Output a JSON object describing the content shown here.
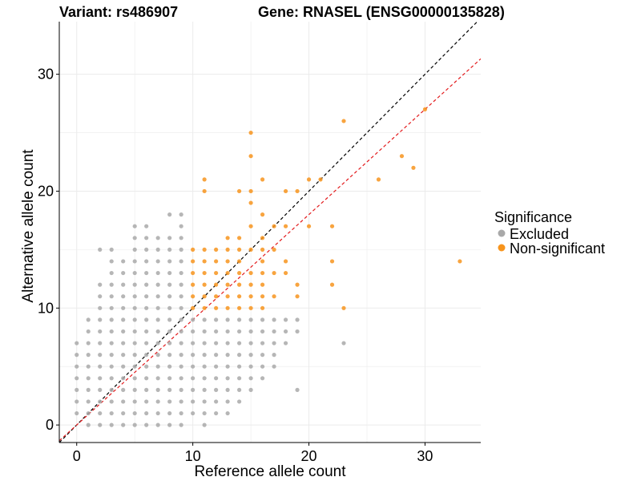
{
  "chart_data": {
    "type": "scatter",
    "title_left": "Variant: rs486907",
    "title_right": "Gene: RNASEL (ENSG00000135828)",
    "xlabel": "Reference allele count",
    "ylabel": "Alternative allele count",
    "xlim": [
      -1.5,
      34.8
    ],
    "ylim": [
      -1.5,
      34.5
    ],
    "x_ticks": [
      0,
      10,
      20,
      30
    ],
    "y_ticks": [
      0,
      10,
      20,
      30
    ],
    "grid": true,
    "legend": {
      "title": "Significance",
      "position": "right",
      "entries": [
        {
          "label": "Excluded",
          "color": "#a9a9a9"
        },
        {
          "label": "Non-significant",
          "color": "#f7941d"
        }
      ]
    },
    "reference_lines": [
      {
        "name": "identity",
        "slope": 1.0,
        "intercept": 0,
        "color": "#000000",
        "style": "dashed"
      },
      {
        "name": "fit",
        "slope": 0.9,
        "intercept": 0,
        "color": "#e31a1c",
        "style": "dashed"
      }
    ],
    "series": [
      {
        "name": "Excluded",
        "color": "#a9a9a9",
        "points": [
          [
            1,
            0
          ],
          [
            2,
            0
          ],
          [
            3,
            0
          ],
          [
            4,
            0
          ],
          [
            5,
            0
          ],
          [
            6,
            0
          ],
          [
            7,
            0
          ],
          [
            8,
            0
          ],
          [
            9,
            0
          ],
          [
            11,
            0
          ],
          [
            0,
            1
          ],
          [
            1,
            1
          ],
          [
            2,
            1
          ],
          [
            3,
            1
          ],
          [
            4,
            1
          ],
          [
            5,
            1
          ],
          [
            6,
            1
          ],
          [
            7,
            1
          ],
          [
            8,
            1
          ],
          [
            9,
            1
          ],
          [
            10,
            1
          ],
          [
            11,
            1
          ],
          [
            12,
            1
          ],
          [
            13,
            1
          ],
          [
            0,
            2
          ],
          [
            1,
            2
          ],
          [
            2,
            2
          ],
          [
            3,
            2
          ],
          [
            4,
            2
          ],
          [
            5,
            2
          ],
          [
            6,
            2
          ],
          [
            7,
            2
          ],
          [
            8,
            2
          ],
          [
            9,
            2
          ],
          [
            10,
            2
          ],
          [
            11,
            2
          ],
          [
            12,
            2
          ],
          [
            13,
            2
          ],
          [
            14,
            2
          ],
          [
            0,
            3
          ],
          [
            1,
            3
          ],
          [
            2,
            3
          ],
          [
            3,
            3
          ],
          [
            4,
            3
          ],
          [
            5,
            3
          ],
          [
            6,
            3
          ],
          [
            7,
            3
          ],
          [
            8,
            3
          ],
          [
            9,
            3
          ],
          [
            10,
            3
          ],
          [
            11,
            3
          ],
          [
            12,
            3
          ],
          [
            13,
            3
          ],
          [
            14,
            3
          ],
          [
            15,
            3
          ],
          [
            19,
            3
          ],
          [
            0,
            4
          ],
          [
            1,
            4
          ],
          [
            2,
            4
          ],
          [
            3,
            4
          ],
          [
            4,
            4
          ],
          [
            5,
            4
          ],
          [
            6,
            4
          ],
          [
            7,
            4
          ],
          [
            8,
            4
          ],
          [
            9,
            4
          ],
          [
            10,
            4
          ],
          [
            11,
            4
          ],
          [
            12,
            4
          ],
          [
            13,
            4
          ],
          [
            14,
            4
          ],
          [
            15,
            4
          ],
          [
            16,
            4
          ],
          [
            0,
            5
          ],
          [
            1,
            5
          ],
          [
            2,
            5
          ],
          [
            3,
            5
          ],
          [
            4,
            5
          ],
          [
            5,
            5
          ],
          [
            6,
            5
          ],
          [
            7,
            5
          ],
          [
            8,
            5
          ],
          [
            9,
            5
          ],
          [
            10,
            5
          ],
          [
            11,
            5
          ],
          [
            12,
            5
          ],
          [
            13,
            5
          ],
          [
            14,
            5
          ],
          [
            15,
            5
          ],
          [
            16,
            5
          ],
          [
            17,
            5
          ],
          [
            0,
            6
          ],
          [
            1,
            6
          ],
          [
            2,
            6
          ],
          [
            3,
            6
          ],
          [
            4,
            6
          ],
          [
            5,
            6
          ],
          [
            6,
            6
          ],
          [
            7,
            6
          ],
          [
            8,
            6
          ],
          [
            9,
            6
          ],
          [
            10,
            6
          ],
          [
            11,
            6
          ],
          [
            12,
            6
          ],
          [
            13,
            6
          ],
          [
            14,
            6
          ],
          [
            15,
            6
          ],
          [
            16,
            6
          ],
          [
            17,
            6
          ],
          [
            0,
            7
          ],
          [
            1,
            7
          ],
          [
            2,
            7
          ],
          [
            3,
            7
          ],
          [
            4,
            7
          ],
          [
            5,
            7
          ],
          [
            6,
            7
          ],
          [
            7,
            7
          ],
          [
            8,
            7
          ],
          [
            9,
            7
          ],
          [
            10,
            7
          ],
          [
            11,
            7
          ],
          [
            12,
            7
          ],
          [
            13,
            7
          ],
          [
            14,
            7
          ],
          [
            15,
            7
          ],
          [
            16,
            7
          ],
          [
            17,
            7
          ],
          [
            18,
            7
          ],
          [
            23,
            7
          ],
          [
            1,
            8
          ],
          [
            2,
            8
          ],
          [
            3,
            8
          ],
          [
            4,
            8
          ],
          [
            5,
            8
          ],
          [
            6,
            8
          ],
          [
            7,
            8
          ],
          [
            8,
            8
          ],
          [
            9,
            8
          ],
          [
            10,
            8
          ],
          [
            11,
            8
          ],
          [
            12,
            8
          ],
          [
            13,
            8
          ],
          [
            14,
            8
          ],
          [
            15,
            8
          ],
          [
            16,
            8
          ],
          [
            17,
            8
          ],
          [
            18,
            8
          ],
          [
            19,
            8
          ],
          [
            1,
            9
          ],
          [
            2,
            9
          ],
          [
            3,
            9
          ],
          [
            4,
            9
          ],
          [
            5,
            9
          ],
          [
            6,
            9
          ],
          [
            7,
            9
          ],
          [
            8,
            9
          ],
          [
            9,
            9
          ],
          [
            10,
            9
          ],
          [
            11,
            9
          ],
          [
            12,
            9
          ],
          [
            13,
            9
          ],
          [
            14,
            9
          ],
          [
            15,
            9
          ],
          [
            16,
            9
          ],
          [
            17,
            9
          ],
          [
            18,
            9
          ],
          [
            19,
            9
          ],
          [
            2,
            10
          ],
          [
            3,
            10
          ],
          [
            4,
            10
          ],
          [
            5,
            10
          ],
          [
            6,
            10
          ],
          [
            7,
            10
          ],
          [
            8,
            10
          ],
          [
            9,
            10
          ],
          [
            2,
            11
          ],
          [
            3,
            11
          ],
          [
            4,
            11
          ],
          [
            5,
            11
          ],
          [
            6,
            11
          ],
          [
            7,
            11
          ],
          [
            8,
            11
          ],
          [
            9,
            11
          ],
          [
            2,
            12
          ],
          [
            3,
            12
          ],
          [
            4,
            12
          ],
          [
            5,
            12
          ],
          [
            6,
            12
          ],
          [
            7,
            12
          ],
          [
            8,
            12
          ],
          [
            9,
            12
          ],
          [
            3,
            13
          ],
          [
            4,
            13
          ],
          [
            5,
            13
          ],
          [
            6,
            13
          ],
          [
            7,
            13
          ],
          [
            8,
            13
          ],
          [
            9,
            13
          ],
          [
            3,
            14
          ],
          [
            4,
            14
          ],
          [
            5,
            14
          ],
          [
            6,
            14
          ],
          [
            7,
            14
          ],
          [
            8,
            14
          ],
          [
            9,
            14
          ],
          [
            2,
            15
          ],
          [
            3,
            15
          ],
          [
            5,
            15
          ],
          [
            6,
            15
          ],
          [
            7,
            15
          ],
          [
            8,
            15
          ],
          [
            9,
            15
          ],
          [
            5,
            16
          ],
          [
            6,
            16
          ],
          [
            7,
            16
          ],
          [
            8,
            16
          ],
          [
            9,
            16
          ],
          [
            5,
            17
          ],
          [
            6,
            17
          ],
          [
            9,
            17
          ],
          [
            8,
            18
          ],
          [
            9,
            18
          ]
        ]
      },
      {
        "name": "Non-significant",
        "color": "#f7941d",
        "points": [
          [
            10,
            10
          ],
          [
            11,
            10
          ],
          [
            12,
            10
          ],
          [
            13,
            10
          ],
          [
            14,
            10
          ],
          [
            15,
            10
          ],
          [
            16,
            10
          ],
          [
            23,
            10
          ],
          [
            10,
            11
          ],
          [
            11,
            11
          ],
          [
            12,
            11
          ],
          [
            13,
            11
          ],
          [
            14,
            11
          ],
          [
            15,
            11
          ],
          [
            16,
            11
          ],
          [
            17,
            11
          ],
          [
            19,
            11
          ],
          [
            10,
            12
          ],
          [
            11,
            12
          ],
          [
            12,
            12
          ],
          [
            13,
            12
          ],
          [
            14,
            12
          ],
          [
            15,
            12
          ],
          [
            16,
            12
          ],
          [
            19,
            12
          ],
          [
            22,
            12
          ],
          [
            10,
            13
          ],
          [
            11,
            13
          ],
          [
            12,
            13
          ],
          [
            13,
            13
          ],
          [
            14,
            13
          ],
          [
            15,
            13
          ],
          [
            16,
            13
          ],
          [
            17,
            13
          ],
          [
            18,
            13
          ],
          [
            10,
            14
          ],
          [
            11,
            14
          ],
          [
            12,
            14
          ],
          [
            13,
            14
          ],
          [
            14,
            14
          ],
          [
            16,
            14
          ],
          [
            18,
            14
          ],
          [
            22,
            14
          ],
          [
            10,
            15
          ],
          [
            11,
            15
          ],
          [
            12,
            15
          ],
          [
            13,
            15
          ],
          [
            14,
            15
          ],
          [
            15,
            15
          ],
          [
            16,
            15
          ],
          [
            17,
            15
          ],
          [
            13,
            16
          ],
          [
            14,
            16
          ],
          [
            16,
            16
          ],
          [
            15,
            17
          ],
          [
            17,
            17
          ],
          [
            18,
            17
          ],
          [
            20,
            17
          ],
          [
            22,
            17
          ],
          [
            16,
            18
          ],
          [
            15,
            19
          ],
          [
            11,
            20
          ],
          [
            14,
            20
          ],
          [
            15,
            20
          ],
          [
            18,
            20
          ],
          [
            19,
            20
          ],
          [
            21,
            21
          ],
          [
            11,
            21
          ],
          [
            16,
            21
          ],
          [
            20,
            21
          ],
          [
            26,
            21
          ],
          [
            29,
            22
          ],
          [
            15,
            23
          ],
          [
            28,
            23
          ],
          [
            15,
            25
          ],
          [
            23,
            26
          ],
          [
            30,
            27
          ],
          [
            33,
            14
          ]
        ]
      }
    ]
  }
}
